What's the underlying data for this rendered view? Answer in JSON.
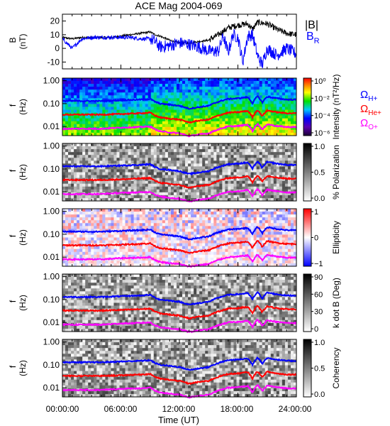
{
  "title": "ACE Mag 2004-069",
  "time_axis": {
    "label": "Time (UT)",
    "ticks": [
      "00:00:00",
      "06:00:00",
      "12:00:00",
      "18:00:00",
      "24:00:00"
    ],
    "range_hours": [
      0,
      24
    ]
  },
  "legend": {
    "B_total": "|B|",
    "B_radial": {
      "main": "B",
      "sub": "R"
    },
    "H_plus": {
      "main": "Ω",
      "sub": "H+"
    },
    "He_plus": {
      "main": "Ω",
      "sub": "He+"
    },
    "O_plus": {
      "main": "Ω",
      "sub": "O+"
    }
  },
  "colors": {
    "B_total": "#000000",
    "B_radial": "#0000ff",
    "H_plus": "#0000ff",
    "He_plus": "#ff0000",
    "O_plus": "#ff00ff"
  },
  "panels": [
    {
      "id": "mag",
      "ylabel_top": "B",
      "ylabel_bottom": "(nT)",
      "yticks": [
        "20",
        "10",
        "0",
        "-10"
      ],
      "ylim": [
        -15,
        25
      ]
    },
    {
      "id": "intensity",
      "ylabel_top": "f",
      "ylabel_bottom": "(Hz)",
      "yticks": [
        "1.00",
        "0.10",
        "0.01"
      ],
      "colorbar_label": "Intensity (nT²/Hz)",
      "colorbar_ticks": [
        "10⁰",
        "10⁻²",
        "10⁻⁴",
        "10⁻⁶"
      ],
      "colormap": "rainbow",
      "log_scale": true
    },
    {
      "id": "polarization",
      "ylabel_top": "f",
      "ylabel_bottom": "(Hz)",
      "yticks": [
        "1.00",
        "0.10",
        "0.01"
      ],
      "colorbar_label": "% Polarization",
      "colorbar_ticks": [
        "1.0",
        "0.5",
        "0.0"
      ],
      "colormap": "gray"
    },
    {
      "id": "ellipticity",
      "ylabel_top": "f",
      "ylabel_bottom": "(Hz)",
      "yticks": [
        "1.00",
        "0.10",
        "0.01"
      ],
      "colorbar_label": "Ellipticity",
      "colorbar_ticks": [
        "1",
        "0",
        "−1"
      ],
      "colormap": "blue-white-red"
    },
    {
      "id": "kdotb",
      "ylabel_top": "f",
      "ylabel_bottom": "(Hz)",
      "yticks": [
        "1.00",
        "0.10",
        "0.01"
      ],
      "colorbar_label": "k dot B (Deg)",
      "colorbar_ticks": [
        "90",
        "60",
        "30",
        "0"
      ],
      "colormap": "gray"
    },
    {
      "id": "coherency",
      "ylabel_top": "f",
      "ylabel_bottom": "(Hz)",
      "yticks": [
        "1.00",
        "0.10",
        "0.01"
      ],
      "colorbar_label": "Coherency",
      "colorbar_ticks": [
        "1.0",
        "0.5",
        "0.0"
      ],
      "colormap": "gray"
    }
  ],
  "chart_data": {
    "type": "line",
    "title": "ACE Mag 2004-069",
    "xlabel": "Time (UT)",
    "xlim_hours": [
      0,
      24
    ],
    "mag_series": [
      {
        "name": "|B|",
        "x": [
          0,
          1,
          2,
          3,
          4,
          5,
          6,
          7,
          8,
          9,
          9.5,
          10,
          11,
          12,
          13,
          14,
          15,
          16,
          17,
          18,
          19,
          19.5,
          20,
          21,
          22,
          23,
          24
        ],
        "values": [
          8,
          7,
          8,
          8,
          8,
          8,
          9,
          10,
          11,
          12,
          10,
          9,
          6,
          4,
          4,
          5,
          6,
          10,
          15,
          17,
          18,
          14,
          19,
          18,
          14,
          11,
          10
        ]
      },
      {
        "name": "B_R",
        "x": [
          0,
          1,
          2,
          3,
          4,
          5,
          6,
          7,
          8,
          9,
          9.5,
          10,
          11,
          12,
          13,
          14,
          15,
          16,
          16.5,
          17,
          17.5,
          18,
          18.5,
          19,
          19.5,
          20,
          20.5,
          21,
          22,
          23,
          24
        ],
        "values": [
          7,
          0,
          7,
          8,
          8,
          8,
          8,
          8,
          7,
          7,
          5,
          1,
          2,
          4,
          3,
          1,
          -2,
          -2,
          9,
          -3,
          10,
          8,
          -10,
          9,
          10,
          -5,
          -12,
          0,
          -5,
          0,
          -4
        ]
      }
    ],
    "cyclotron_frequencies_hz": {
      "x": [
        0,
        2,
        4,
        6,
        8,
        9,
        9.5,
        10,
        11,
        12,
        13,
        14,
        15,
        16,
        17,
        18,
        19,
        19.5,
        20,
        20.5,
        21,
        22,
        23,
        24
      ],
      "H_plus": [
        0.13,
        0.13,
        0.13,
        0.14,
        0.15,
        0.16,
        0.12,
        0.1,
        0.09,
        0.08,
        0.06,
        0.07,
        0.08,
        0.12,
        0.16,
        0.17,
        0.19,
        0.1,
        0.21,
        0.11,
        0.2,
        0.17,
        0.15,
        0.15
      ],
      "He_plus": [
        0.033,
        0.033,
        0.033,
        0.035,
        0.038,
        0.04,
        0.03,
        0.025,
        0.022,
        0.02,
        0.015,
        0.018,
        0.02,
        0.03,
        0.04,
        0.042,
        0.048,
        0.025,
        0.052,
        0.028,
        0.05,
        0.042,
        0.038,
        0.038
      ],
      "O_plus": [
        0.008,
        0.008,
        0.008,
        0.009,
        0.0095,
        0.01,
        0.0075,
        0.0062,
        0.0055,
        0.005,
        0.0038,
        0.0045,
        0.005,
        0.0075,
        0.01,
        0.0105,
        0.012,
        0.0062,
        0.013,
        0.007,
        0.0125,
        0.0105,
        0.0095,
        0.0095
      ]
    },
    "spectrogram_ylim_hz": [
      0.004,
      1.3
    ]
  }
}
